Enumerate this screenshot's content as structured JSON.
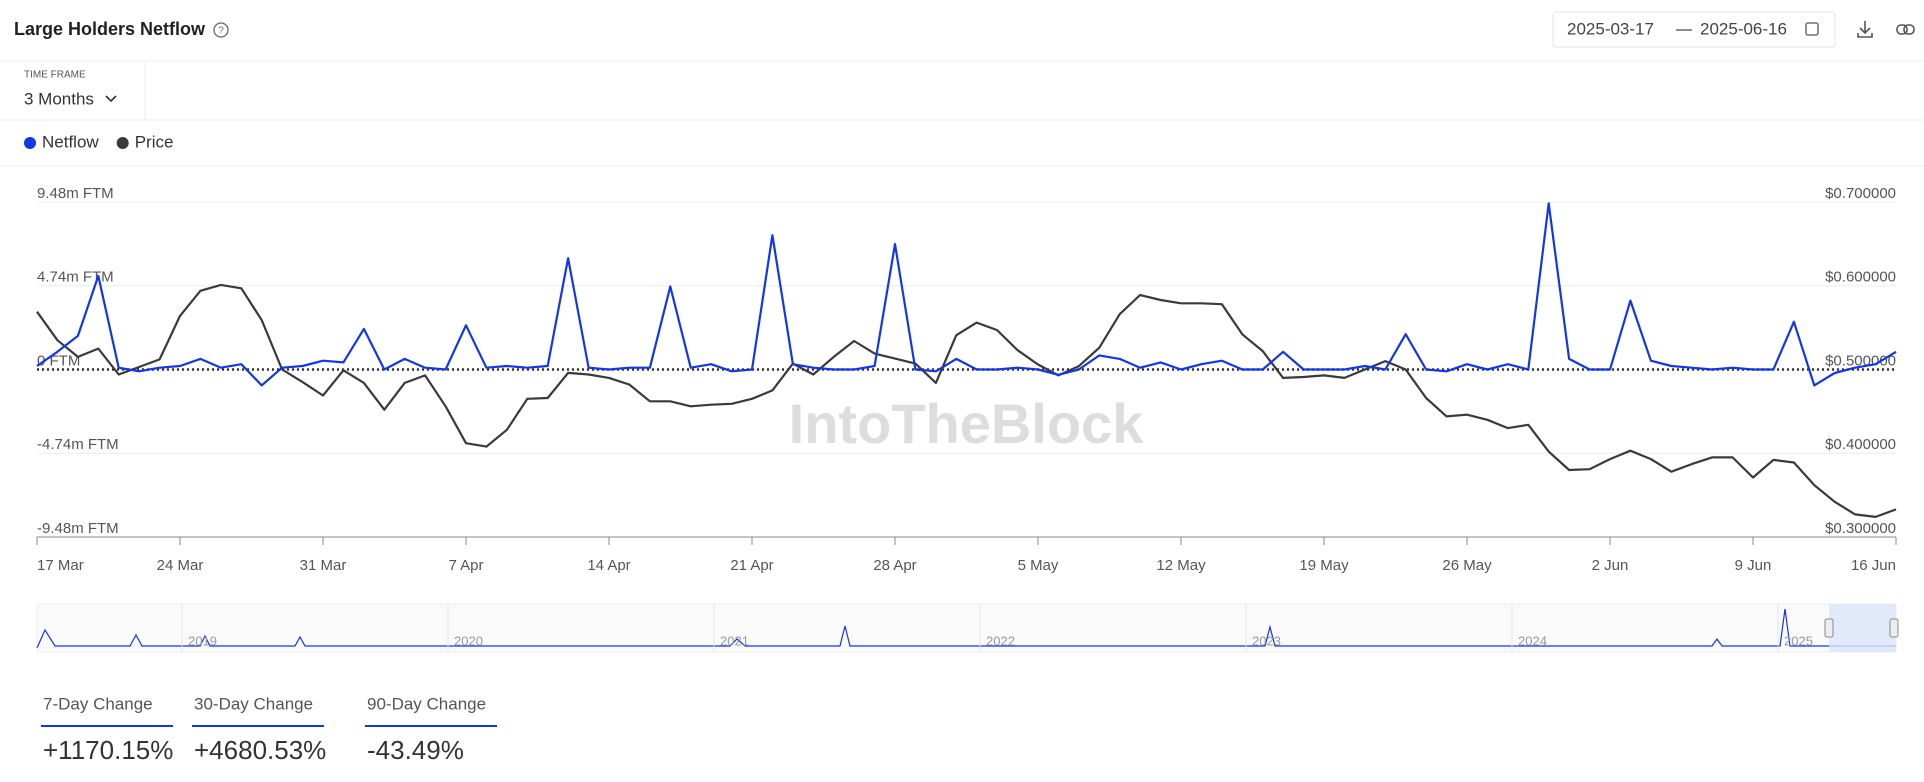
{
  "header": {
    "title": "Large Holders Netflow",
    "date_start": "2025-03-17",
    "date_end": "2025-06-16"
  },
  "timeframe": {
    "label": "TIME FRAME",
    "value": "3 Months"
  },
  "chart_data": {
    "type": "line",
    "categories": [
      "17 Mar",
      null,
      null,
      null,
      null,
      null,
      null,
      "24 Mar",
      null,
      null,
      null,
      null,
      null,
      null,
      "31 Mar",
      null,
      null,
      null,
      null,
      null,
      null,
      "7 Apr",
      null,
      null,
      null,
      null,
      null,
      null,
      "14 Apr",
      null,
      null,
      null,
      null,
      null,
      null,
      "21 Apr",
      null,
      null,
      null,
      null,
      null,
      null,
      "28 Apr",
      null,
      null,
      null,
      null,
      null,
      null,
      "5 May",
      null,
      null,
      null,
      null,
      null,
      null,
      "12 May",
      null,
      null,
      null,
      null,
      null,
      null,
      "19 May",
      null,
      null,
      null,
      null,
      null,
      null,
      "26 May",
      null,
      null,
      null,
      null,
      null,
      null,
      "2 Jun",
      null,
      null,
      null,
      null,
      null,
      null,
      "9 Jun",
      null,
      null,
      null,
      null,
      null,
      null,
      "16 Jun"
    ],
    "series": [
      {
        "name": "Netflow",
        "color": "#1237e6",
        "values": [
          200000,
          1000000,
          1900000,
          5300000,
          100000,
          -100000,
          100000,
          200000,
          600000,
          100000,
          300000,
          -900000,
          100000,
          200000,
          500000,
          400000,
          2300000,
          0,
          600000,
          100000,
          0,
          2500000,
          100000,
          200000,
          100000,
          200000,
          6300000,
          100000,
          0,
          100000,
          100000,
          4700000,
          100000,
          300000,
          -100000,
          0,
          7600000,
          300000,
          100000,
          0,
          0,
          200000,
          7100000,
          0,
          -100000,
          600000,
          0,
          0,
          100000,
          0,
          -300000,
          0,
          800000,
          600000,
          100000,
          400000,
          0,
          300000,
          500000,
          0,
          0,
          1000000,
          0,
          0,
          0,
          200000,
          0,
          2000000,
          0,
          -100000,
          300000,
          0,
          300000,
          0,
          9400000,
          600000,
          0,
          0,
          3900000,
          500000,
          200000,
          100000,
          0,
          100000,
          0,
          0,
          2700000,
          -900000,
          -200000,
          100000,
          300000,
          1000000
        ]
      },
      {
        "name": "Price",
        "color": "#3a3a3a",
        "axis": "y2",
        "values": [
          0.569,
          0.535,
          0.515,
          0.525,
          0.494,
          0.503,
          0.512,
          0.564,
          0.594,
          0.601,
          0.597,
          0.559,
          0.5,
          0.485,
          0.469,
          0.499,
          0.484,
          0.452,
          0.484,
          0.493,
          0.456,
          0.412,
          0.408,
          0.428,
          0.465,
          0.466,
          0.496,
          0.494,
          0.49,
          0.482,
          0.462,
          0.462,
          0.456,
          0.458,
          0.459,
          0.465,
          0.475,
          0.507,
          0.494,
          0.515,
          0.534,
          0.519,
          0.513,
          0.507,
          0.484,
          0.541,
          0.556,
          0.547,
          0.523,
          0.506,
          0.493,
          0.504,
          0.526,
          0.566,
          0.589,
          0.583,
          0.579,
          0.579,
          0.578,
          0.542,
          0.522,
          0.49,
          0.491,
          0.493,
          0.49,
          0.5,
          0.51,
          0.5,
          0.466,
          0.444,
          0.446,
          0.44,
          0.43,
          0.434,
          0.402,
          0.38,
          0.381,
          0.393,
          0.403,
          0.393,
          0.378,
          0.387,
          0.395,
          0.395,
          0.371,
          0.392,
          0.389,
          0.362,
          0.342,
          0.327,
          0.324,
          0.333
        ]
      }
    ],
    "ylim": [
      -9480000,
      9480000
    ],
    "yticks": [
      {
        "value": 9480000,
        "label": "9.48m FTM"
      },
      {
        "value": 4740000,
        "label": "4.74m FTM"
      },
      {
        "value": 0,
        "label": "0 FTM"
      },
      {
        "value": -4740000,
        "label": "-4.74m FTM"
      },
      {
        "value": -9480000,
        "label": "-9.48m FTM"
      }
    ],
    "y2lim": [
      0.3,
      0.7
    ],
    "y2ticks": [
      {
        "value": 0.7,
        "label": "$0.700000"
      },
      {
        "value": 0.6,
        "label": "$0.600000"
      },
      {
        "value": 0.5,
        "label": "$0.500000"
      },
      {
        "value": 0.4,
        "label": "$0.400000"
      },
      {
        "value": 0.3,
        "label": "$0.300000"
      }
    ],
    "grid": true,
    "watermark": "IntoTheBlock"
  },
  "navigator": {
    "labels": [
      "2019",
      "2020",
      "2021",
      "2022",
      "2023",
      "2024",
      "2025"
    ]
  },
  "stats": [
    {
      "label": "7-Day Change",
      "value": "+1170.15%"
    },
    {
      "label": "30-Day Change",
      "value": "+4680.53%"
    },
    {
      "label": "90-Day Change",
      "value": "-43.49%"
    }
  ]
}
